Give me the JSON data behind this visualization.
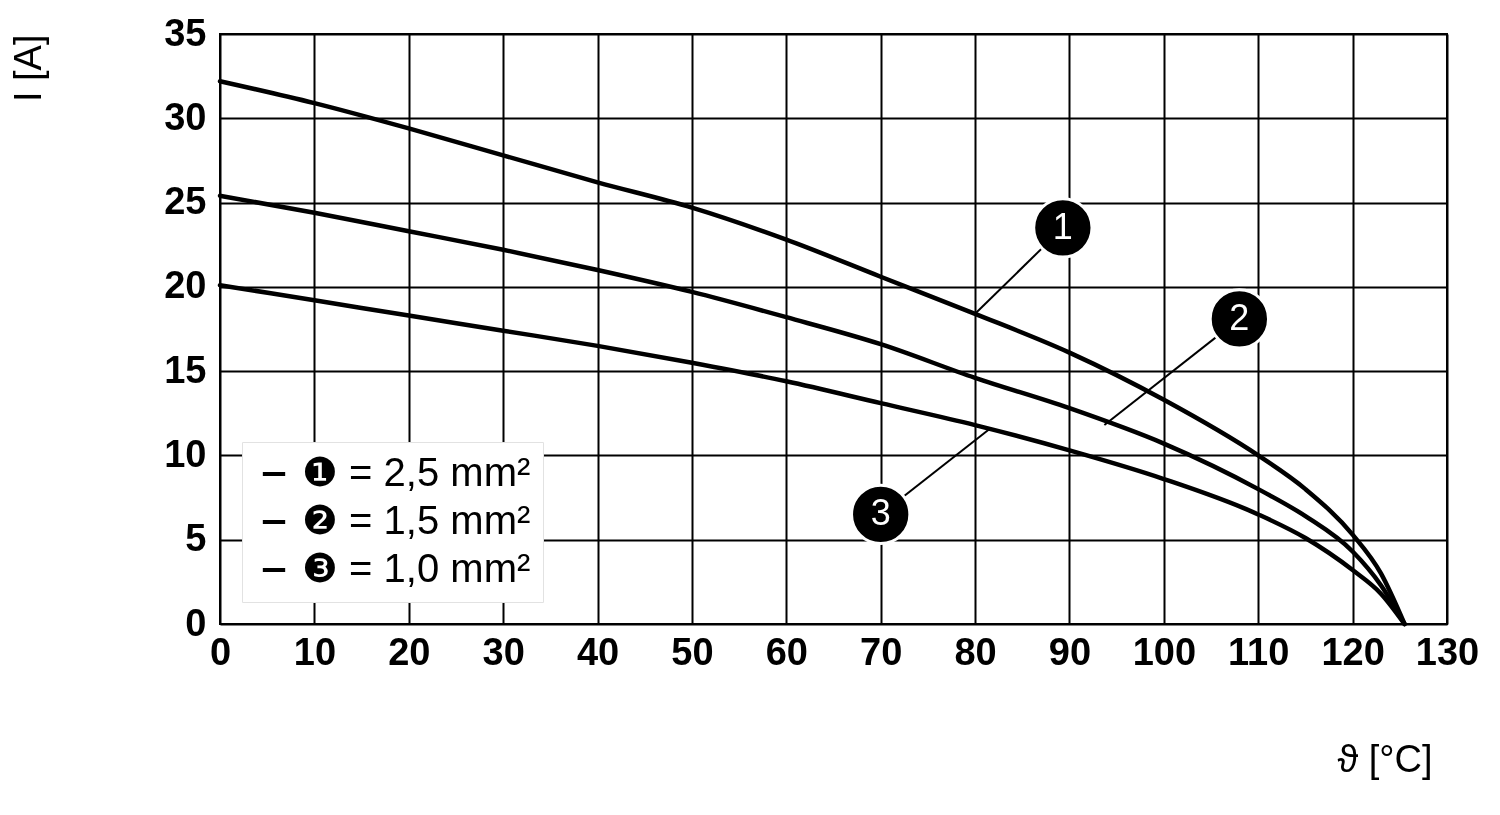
{
  "chart_data": {
    "type": "line",
    "xlabel": "ϑ [°C]",
    "ylabel": "I [A]",
    "xlim": [
      0,
      130
    ],
    "xticks": [
      0,
      10,
      20,
      30,
      40,
      50,
      60,
      70,
      80,
      90,
      100,
      110,
      120,
      130
    ],
    "ylim": [
      0,
      35
    ],
    "yticks": [
      0,
      5,
      10,
      15,
      20,
      25,
      30,
      35
    ],
    "grid": true,
    "legend": "bottom left",
    "marker": "none",
    "line_style": "solid",
    "series": [
      {
        "name": "❶ = 2,5 mm²",
        "color": "#000000",
        "x": [
          0,
          10,
          20,
          30,
          40,
          50,
          60,
          70,
          80,
          90,
          100,
          110,
          115,
          120,
          123,
          125.5
        ],
        "values": [
          32.2,
          30.9,
          29.4,
          27.8,
          26.2,
          24.7,
          22.8,
          20.6,
          18.4,
          16.1,
          13.3,
          10.0,
          8.0,
          5.3,
          3.0,
          0
        ]
      },
      {
        "name": "❷ = 1,5 mm²",
        "color": "#000000",
        "x": [
          0,
          10,
          20,
          30,
          40,
          50,
          60,
          70,
          80,
          90,
          100,
          110,
          115,
          120,
          123,
          125.5
        ],
        "values": [
          25.4,
          24.4,
          23.3,
          22.2,
          21.0,
          19.7,
          18.2,
          16.6,
          14.6,
          12.8,
          10.7,
          8.0,
          6.4,
          4.3,
          2.3,
          0
        ]
      },
      {
        "name": "❸ = 1,0 mm²",
        "color": "#000000",
        "x": [
          0,
          10,
          20,
          30,
          40,
          50,
          60,
          70,
          80,
          90,
          100,
          110,
          115,
          120,
          123,
          125.5
        ],
        "values": [
          20.1,
          19.2,
          18.3,
          17.4,
          16.5,
          15.5,
          14.4,
          13.1,
          11.8,
          10.3,
          8.6,
          6.5,
          5.1,
          3.2,
          1.8,
          0
        ]
      }
    ],
    "annotations": [
      {
        "text": "1",
        "x": 80,
        "y": 18.4
      },
      {
        "text": "2",
        "x": 93.7,
        "y": 11.8
      },
      {
        "text": "3",
        "x": 81.6,
        "y": 11.6
      }
    ]
  }
}
